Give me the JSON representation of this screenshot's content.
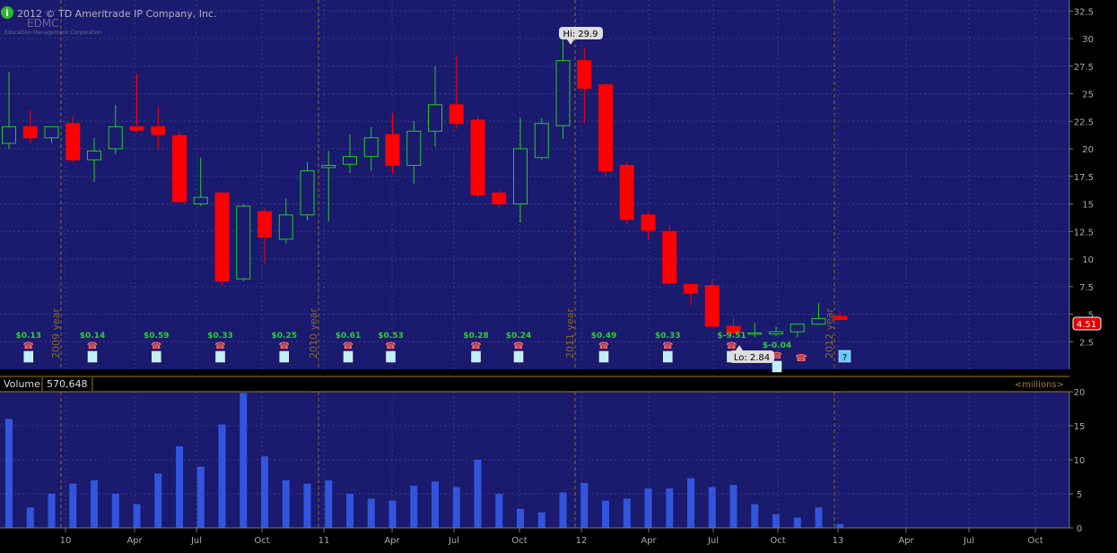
{
  "header": {
    "copyright": "2012 © TD Ameritrade IP Company, Inc.",
    "watermark": "EDMC",
    "watermark_sub": "Education Management Corporation",
    "info_icon": "info-icon"
  },
  "colors": {
    "background": "#1a1a6e",
    "grid": "#3a3a8a",
    "up": "#22cc22",
    "down": "#ff0000",
    "volume": "#3355dd",
    "last_price_badge": "#e00000",
    "year_divider": "#8a6a2a",
    "dividend_text": "#33cc33"
  },
  "price_chart": {
    "hi_label": "Hi: 29.9",
    "lo_label": "Lo: 2.84",
    "last_price": "4.51",
    "y_ticks": [
      "32.5",
      "30",
      "27.5",
      "25",
      "22.5",
      "20",
      "17.5",
      "15",
      "12.5",
      "10",
      "7.5",
      "5",
      "2.5"
    ]
  },
  "volume_panel": {
    "label": "Volume",
    "value": "570,648",
    "units": "<millions>",
    "y_ticks": [
      "20",
      "15",
      "10",
      "5",
      "0"
    ]
  },
  "x_axis": {
    "labels": [
      "10",
      "Apr",
      "Jul",
      "Oct",
      "11",
      "Apr",
      "Jul",
      "Oct",
      "12",
      "Apr",
      "Jul",
      "Oct",
      "13",
      "Apr",
      "Jul",
      "Oct"
    ]
  },
  "year_markers": [
    "2009 year",
    "2010 year",
    "2011 year",
    "2012 year"
  ],
  "dividends": [
    "$0.13",
    "$0.14",
    "$0.59",
    "$0.33",
    "$0.25",
    "$0.61",
    "$0.53",
    "$0.28",
    "$0.24",
    "$0.49",
    "$0.33",
    "$-9.51",
    "$-0.04"
  ],
  "chart_data": {
    "type": "candlestick",
    "interval": "monthly",
    "series_price": [
      {
        "open": 20.5,
        "high": 27.0,
        "low": 20.0,
        "close": 22.0
      },
      {
        "open": 22.0,
        "high": 23.5,
        "low": 20.5,
        "close": 21.0
      },
      {
        "open": 21.0,
        "high": 22.0,
        "low": 20.5,
        "close": 22.0
      },
      {
        "open": 22.3,
        "high": 23.0,
        "low": 18.8,
        "close": 19.0
      },
      {
        "open": 19.0,
        "high": 21.0,
        "low": 17.0,
        "close": 19.8
      },
      {
        "open": 20.0,
        "high": 24.0,
        "low": 19.5,
        "close": 22.0
      },
      {
        "open": 22.0,
        "high": 26.8,
        "low": 21.5,
        "close": 21.7
      },
      {
        "open": 22.0,
        "high": 23.8,
        "low": 20.0,
        "close": 21.3
      },
      {
        "open": 21.2,
        "high": 21.6,
        "low": 15.2,
        "close": 15.2
      },
      {
        "open": 15.0,
        "high": 19.2,
        "low": 14.8,
        "close": 15.6
      },
      {
        "open": 16.0,
        "high": 16.0,
        "low": 7.6,
        "close": 8.0
      },
      {
        "open": 8.2,
        "high": 15.0,
        "low": 8.0,
        "close": 14.8
      },
      {
        "open": 14.3,
        "high": 14.6,
        "low": 9.6,
        "close": 12.0
      },
      {
        "open": 11.8,
        "high": 15.5,
        "low": 11.4,
        "close": 14.0
      },
      {
        "open": 14.0,
        "high": 18.8,
        "low": 13.5,
        "close": 18.0
      },
      {
        "open": 18.3,
        "high": 19.8,
        "low": 13.4,
        "close": 18.5
      },
      {
        "open": 18.6,
        "high": 21.3,
        "low": 17.8,
        "close": 19.3
      },
      {
        "open": 19.3,
        "high": 22.0,
        "low": 18.0,
        "close": 21.0
      },
      {
        "open": 21.3,
        "high": 23.2,
        "low": 17.8,
        "close": 18.5
      },
      {
        "open": 18.5,
        "high": 22.5,
        "low": 16.8,
        "close": 21.6
      },
      {
        "open": 21.6,
        "high": 27.5,
        "low": 20.2,
        "close": 24.0
      },
      {
        "open": 24.0,
        "high": 28.5,
        "low": 21.8,
        "close": 22.3
      },
      {
        "open": 22.6,
        "high": 23.0,
        "low": 15.5,
        "close": 15.8
      },
      {
        "open": 16.0,
        "high": 16.2,
        "low": 14.6,
        "close": 15.0
      },
      {
        "open": 15.0,
        "high": 22.8,
        "low": 13.3,
        "close": 20.0
      },
      {
        "open": 19.2,
        "high": 22.8,
        "low": 19.0,
        "close": 22.3
      },
      {
        "open": 22.1,
        "high": 29.9,
        "low": 20.9,
        "close": 28.0
      },
      {
        "open": 28.0,
        "high": 29.2,
        "low": 22.3,
        "close": 25.5
      },
      {
        "open": 25.8,
        "high": 26.0,
        "low": 17.5,
        "close": 18.0
      },
      {
        "open": 18.5,
        "high": 18.8,
        "low": 13.2,
        "close": 13.6
      },
      {
        "open": 14.0,
        "high": 14.2,
        "low": 11.8,
        "close": 12.6
      },
      {
        "open": 12.5,
        "high": 13.1,
        "low": 7.8,
        "close": 7.8
      },
      {
        "open": 7.7,
        "high": 7.7,
        "low": 5.8,
        "close": 6.9
      },
      {
        "open": 7.6,
        "high": 8.2,
        "low": 3.9,
        "close": 3.9
      },
      {
        "open": 3.9,
        "high": 4.6,
        "low": 2.84,
        "close": 3.3
      },
      {
        "open": 3.2,
        "high": 4.2,
        "low": 2.9,
        "close": 3.3
      },
      {
        "open": 3.2,
        "high": 3.9,
        "low": 3.0,
        "close": 3.4
      },
      {
        "open": 3.4,
        "high": 4.1,
        "low": 2.9,
        "close": 4.1
      },
      {
        "open": 4.1,
        "high": 6.0,
        "low": 4.0,
        "close": 4.6
      },
      {
        "open": 4.8,
        "high": 5.3,
        "low": 4.4,
        "close": 4.51
      }
    ],
    "series_volume": [
      16,
      3,
      5,
      6.5,
      7,
      5,
      3.5,
      8,
      12,
      9,
      15.2,
      19.8,
      10.5,
      7,
      6.5,
      7,
      5,
      4.3,
      4,
      6.2,
      6.8,
      6,
      10,
      5,
      2.8,
      2.3,
      5.2,
      6.6,
      4,
      4.3,
      5.8,
      5.8,
      7.3,
      6,
      6.3,
      3.5,
      2,
      1.5,
      3,
      0.57
    ],
    "dividend_positions": [
      1,
      4,
      7,
      10,
      13,
      16,
      18,
      22,
      24,
      28,
      31,
      34,
      35
    ],
    "y_range_price": [
      0,
      33.5
    ],
    "y_range_volume": [
      0,
      20
    ],
    "grid": true
  }
}
